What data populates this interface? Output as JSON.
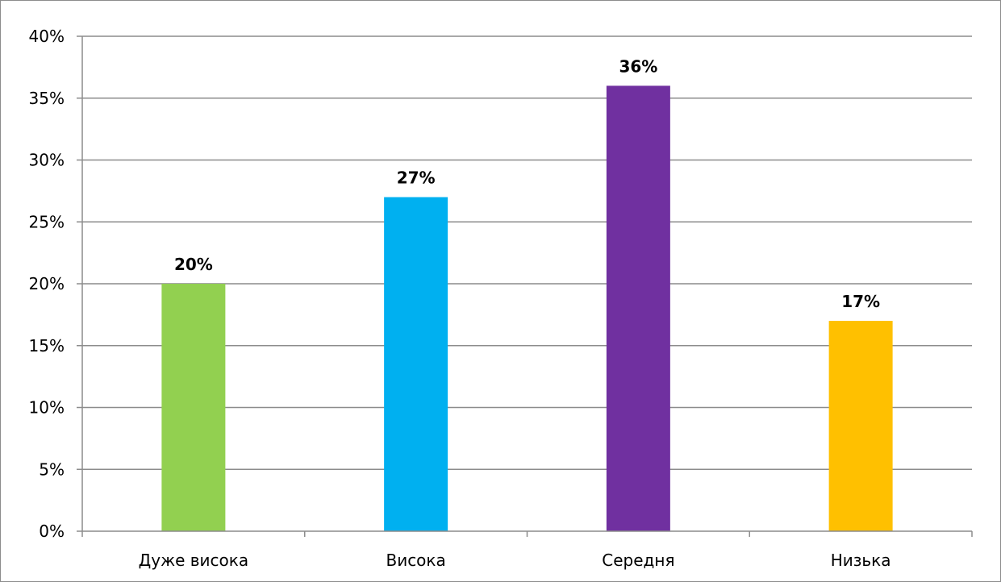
{
  "chart_data": {
    "type": "bar",
    "title": "",
    "xlabel": "",
    "ylabel": "",
    "categories": [
      "Дуже висока",
      "Висока",
      "Середня",
      "Низька"
    ],
    "values": [
      20,
      27,
      36,
      17
    ],
    "data_labels": [
      "20%",
      "27%",
      "36%",
      "17%"
    ],
    "bar_colors": [
      "#92d050",
      "#00b0f0",
      "#7030a0",
      "#ffc000"
    ],
    "ylim": [
      0,
      40
    ],
    "yticks": [
      0,
      5,
      10,
      15,
      20,
      25,
      30,
      35,
      40
    ],
    "ytick_labels": [
      "0%",
      "5%",
      "10%",
      "15%",
      "20%",
      "25%",
      "30%",
      "35%",
      "40%"
    ],
    "grid": true,
    "legend": "none",
    "gridline_color": "#8c8c8c",
    "axis_color": "#8c8c8c"
  }
}
